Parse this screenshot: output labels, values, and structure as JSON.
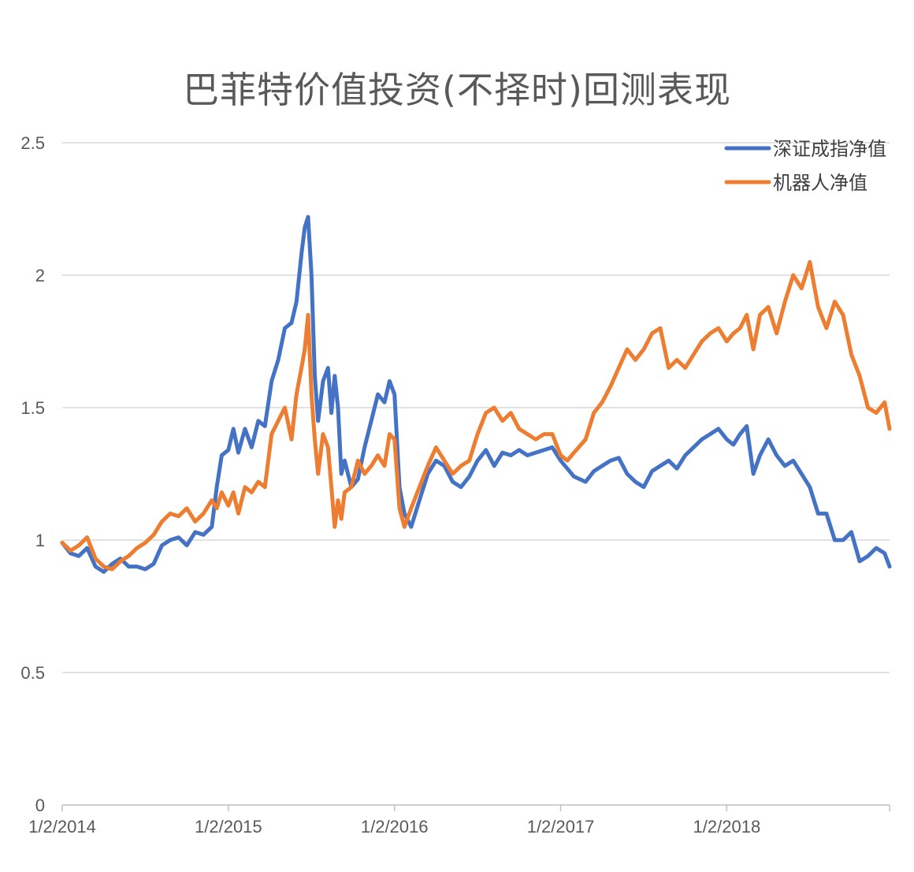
{
  "chart_data": {
    "type": "line",
    "title": "巴菲特价值投资(不择时)回测表现",
    "xlabel": "",
    "ylabel": "",
    "ylim": [
      0,
      2.5
    ],
    "yticks": [
      "0",
      "0.5",
      "1",
      "1.5",
      "2",
      "2.5"
    ],
    "xtick_labels": [
      "1/2/2014",
      "1/2/2015",
      "1/2/2016",
      "1/2/2017",
      "1/2/2018"
    ],
    "xlim": [
      2014.0,
      2018.98
    ],
    "grid": "horizontal",
    "legend_position": "top-right",
    "series": [
      {
        "name": "深证成指净值",
        "color": "#4472C4",
        "x": [
          2014.0,
          2014.05,
          2014.1,
          2014.15,
          2014.2,
          2014.25,
          2014.3,
          2014.35,
          2014.4,
          2014.45,
          2014.5,
          2014.55,
          2014.6,
          2014.65,
          2014.7,
          2014.75,
          2014.8,
          2014.85,
          2014.9,
          2014.93,
          2014.96,
          2015.0,
          2015.03,
          2015.06,
          2015.1,
          2015.14,
          2015.18,
          2015.22,
          2015.26,
          2015.3,
          2015.34,
          2015.38,
          2015.41,
          2015.44,
          2015.46,
          2015.48,
          2015.5,
          2015.52,
          2015.54,
          2015.57,
          2015.6,
          2015.62,
          2015.64,
          2015.66,
          2015.68,
          2015.7,
          2015.74,
          2015.78,
          2015.82,
          2015.86,
          2015.9,
          2015.94,
          2015.97,
          2016.0,
          2016.03,
          2016.06,
          2016.1,
          2016.15,
          2016.2,
          2016.25,
          2016.3,
          2016.35,
          2016.4,
          2016.45,
          2016.5,
          2016.55,
          2016.6,
          2016.65,
          2016.7,
          2016.75,
          2016.8,
          2016.85,
          2016.9,
          2016.95,
          2017.0,
          2017.04,
          2017.08,
          2017.15,
          2017.2,
          2017.25,
          2017.3,
          2017.35,
          2017.4,
          2017.45,
          2017.5,
          2017.55,
          2017.6,
          2017.65,
          2017.7,
          2017.75,
          2017.8,
          2017.85,
          2017.9,
          2017.95,
          2018.0,
          2018.04,
          2018.08,
          2018.12,
          2018.16,
          2018.2,
          2018.25,
          2018.3,
          2018.35,
          2018.4,
          2018.45,
          2018.5,
          2018.55,
          2018.6,
          2018.65,
          2018.7,
          2018.75,
          2018.8,
          2018.85,
          2018.9,
          2018.95,
          2018.98
        ],
        "y": [
          0.99,
          0.95,
          0.94,
          0.97,
          0.9,
          0.88,
          0.91,
          0.93,
          0.9,
          0.9,
          0.89,
          0.91,
          0.98,
          1.0,
          1.01,
          0.98,
          1.03,
          1.02,
          1.05,
          1.2,
          1.32,
          1.34,
          1.42,
          1.33,
          1.42,
          1.35,
          1.45,
          1.43,
          1.6,
          1.68,
          1.8,
          1.82,
          1.9,
          2.08,
          2.18,
          2.22,
          2.0,
          1.62,
          1.45,
          1.6,
          1.65,
          1.48,
          1.62,
          1.5,
          1.25,
          1.3,
          1.2,
          1.23,
          1.35,
          1.45,
          1.55,
          1.52,
          1.6,
          1.55,
          1.2,
          1.1,
          1.05,
          1.15,
          1.25,
          1.3,
          1.28,
          1.22,
          1.2,
          1.24,
          1.3,
          1.34,
          1.28,
          1.33,
          1.32,
          1.34,
          1.32,
          1.33,
          1.34,
          1.35,
          1.3,
          1.27,
          1.24,
          1.22,
          1.26,
          1.28,
          1.3,
          1.31,
          1.25,
          1.22,
          1.2,
          1.26,
          1.28,
          1.3,
          1.27,
          1.32,
          1.35,
          1.38,
          1.4,
          1.42,
          1.38,
          1.36,
          1.4,
          1.43,
          1.25,
          1.32,
          1.38,
          1.32,
          1.28,
          1.3,
          1.25,
          1.2,
          1.1,
          1.1,
          1.0,
          1.0,
          1.03,
          0.92,
          0.94,
          0.97,
          0.95,
          0.9
        ]
      },
      {
        "name": "机器人净值",
        "color": "#ED7D31",
        "x": [
          2014.0,
          2014.05,
          2014.1,
          2014.15,
          2014.2,
          2014.25,
          2014.3,
          2014.35,
          2014.4,
          2014.45,
          2014.5,
          2014.55,
          2014.6,
          2014.65,
          2014.7,
          2014.75,
          2014.8,
          2014.85,
          2014.9,
          2014.93,
          2014.96,
          2015.0,
          2015.03,
          2015.06,
          2015.1,
          2015.14,
          2015.18,
          2015.22,
          2015.26,
          2015.3,
          2015.34,
          2015.38,
          2015.41,
          2015.44,
          2015.46,
          2015.48,
          2015.5,
          2015.52,
          2015.54,
          2015.57,
          2015.6,
          2015.62,
          2015.64,
          2015.66,
          2015.68,
          2015.7,
          2015.74,
          2015.78,
          2015.82,
          2015.86,
          2015.9,
          2015.94,
          2015.97,
          2016.0,
          2016.03,
          2016.06,
          2016.1,
          2016.15,
          2016.2,
          2016.25,
          2016.3,
          2016.35,
          2016.4,
          2016.45,
          2016.5,
          2016.55,
          2016.6,
          2016.65,
          2016.7,
          2016.75,
          2016.8,
          2016.85,
          2016.9,
          2016.95,
          2017.0,
          2017.04,
          2017.08,
          2017.15,
          2017.2,
          2017.25,
          2017.3,
          2017.35,
          2017.4,
          2017.45,
          2017.5,
          2017.55,
          2017.6,
          2017.65,
          2017.7,
          2017.75,
          2017.8,
          2017.85,
          2017.9,
          2017.95,
          2018.0,
          2018.04,
          2018.08,
          2018.12,
          2018.16,
          2018.2,
          2018.25,
          2018.3,
          2018.35,
          2018.4,
          2018.45,
          2018.5,
          2018.55,
          2018.6,
          2018.65,
          2018.7,
          2018.75,
          2018.8,
          2018.85,
          2018.9,
          2018.95,
          2018.98
        ],
        "y": [
          0.99,
          0.96,
          0.98,
          1.01,
          0.93,
          0.9,
          0.89,
          0.92,
          0.94,
          0.97,
          0.99,
          1.02,
          1.07,
          1.1,
          1.09,
          1.12,
          1.07,
          1.1,
          1.15,
          1.12,
          1.18,
          1.13,
          1.18,
          1.1,
          1.2,
          1.18,
          1.22,
          1.2,
          1.4,
          1.45,
          1.5,
          1.38,
          1.55,
          1.65,
          1.72,
          1.85,
          1.55,
          1.38,
          1.25,
          1.4,
          1.35,
          1.2,
          1.05,
          1.15,
          1.08,
          1.18,
          1.2,
          1.3,
          1.25,
          1.28,
          1.32,
          1.28,
          1.4,
          1.38,
          1.12,
          1.05,
          1.12,
          1.2,
          1.28,
          1.35,
          1.3,
          1.25,
          1.28,
          1.3,
          1.4,
          1.48,
          1.5,
          1.45,
          1.48,
          1.42,
          1.4,
          1.38,
          1.4,
          1.4,
          1.32,
          1.3,
          1.33,
          1.38,
          1.48,
          1.52,
          1.58,
          1.65,
          1.72,
          1.68,
          1.72,
          1.78,
          1.8,
          1.65,
          1.68,
          1.65,
          1.7,
          1.75,
          1.78,
          1.8,
          1.75,
          1.78,
          1.8,
          1.85,
          1.72,
          1.85,
          1.88,
          1.78,
          1.9,
          2.0,
          1.95,
          2.05,
          1.88,
          1.8,
          1.9,
          1.85,
          1.7,
          1.62,
          1.5,
          1.48,
          1.52,
          1.42
        ]
      }
    ]
  }
}
